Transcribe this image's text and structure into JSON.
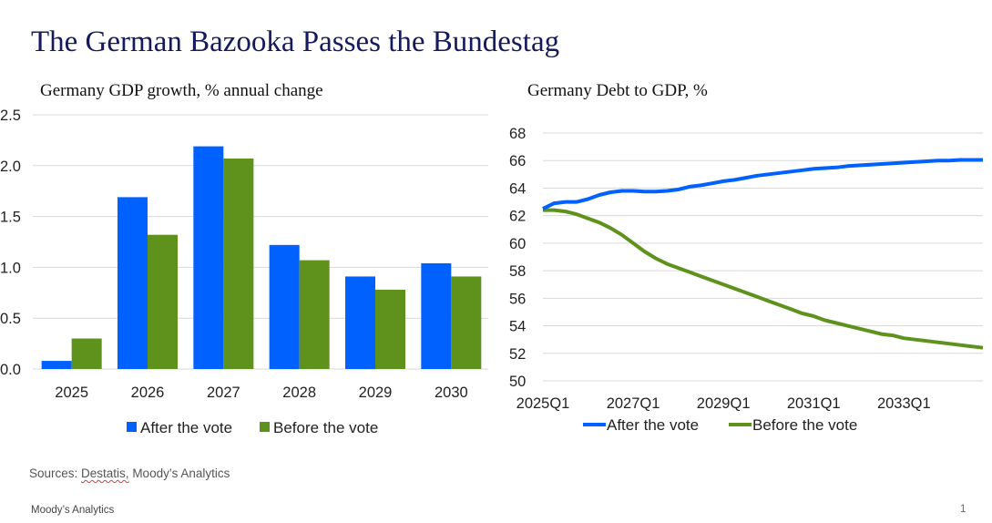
{
  "page": {
    "title": "The German Bazooka Passes the Bundestag",
    "sources_prefix": "Sources: ",
    "sources_link": "Destatis,",
    "sources_rest": " Moody’s Analytics",
    "footer": "Moody’s Analytics",
    "page_number": "1"
  },
  "colors": {
    "after": "#0061fe",
    "before": "#5e921d",
    "title": "#141a5c",
    "grid": "#d9d9d9"
  },
  "chart_data": [
    {
      "type": "bar",
      "title": "Germany GDP growth, % annual change",
      "xlabel": "",
      "ylabel": "",
      "categories": [
        "2025",
        "2026",
        "2027",
        "2028",
        "2029",
        "2030"
      ],
      "series": [
        {
          "name": "After the vote",
          "color": "#0061fe",
          "values": [
            0.08,
            1.69,
            2.19,
            1.22,
            0.91,
            1.04
          ]
        },
        {
          "name": "Before the vote",
          "color": "#5e921d",
          "values": [
            0.3,
            1.32,
            2.07,
            1.07,
            0.78,
            0.91
          ]
        }
      ],
      "ylim": [
        0,
        2.5
      ],
      "yticks": [
        "0.0",
        "0.5",
        "1.0",
        "1.5",
        "2.0",
        "2.5"
      ],
      "grid": true,
      "legend": "bottom-center"
    },
    {
      "type": "line",
      "title": "Germany Debt to GDP, %",
      "xlabel": "",
      "ylabel": "",
      "x_start": "2025Q1",
      "x_end": "2034Q4",
      "xticks": [
        "2025Q1",
        "2027Q1",
        "2029Q1",
        "2031Q1",
        "2033Q1"
      ],
      "xtick_quarter_index": [
        0,
        8,
        16,
        24,
        32
      ],
      "ylim": [
        50,
        68
      ],
      "yticks": [
        "50",
        "52",
        "54",
        "56",
        "58",
        "60",
        "62",
        "64",
        "66",
        "68"
      ],
      "grid": true,
      "legend": "bottom-center",
      "series": [
        {
          "name": "After the vote",
          "color": "#0061fe",
          "values": [
            62.5,
            62.9,
            63.0,
            63.0,
            63.2,
            63.5,
            63.7,
            63.8,
            63.8,
            63.75,
            63.75,
            63.8,
            63.9,
            64.1,
            64.2,
            64.35,
            64.5,
            64.6,
            64.75,
            64.9,
            65.0,
            65.1,
            65.2,
            65.3,
            65.4,
            65.45,
            65.5,
            65.6,
            65.65,
            65.7,
            65.75,
            65.8,
            65.85,
            65.9,
            65.95,
            66.0,
            66.0,
            66.05,
            66.05,
            66.05
          ]
        },
        {
          "name": "Before the vote",
          "color": "#5e921d",
          "values": [
            62.4,
            62.4,
            62.3,
            62.1,
            61.8,
            61.5,
            61.1,
            60.6,
            60.0,
            59.4,
            58.9,
            58.5,
            58.2,
            57.9,
            57.6,
            57.3,
            57.0,
            56.7,
            56.4,
            56.1,
            55.8,
            55.5,
            55.2,
            54.9,
            54.7,
            54.4,
            54.2,
            54.0,
            53.8,
            53.6,
            53.4,
            53.3,
            53.1,
            53.0,
            52.9,
            52.8,
            52.7,
            52.6,
            52.5,
            52.4
          ]
        }
      ]
    }
  ]
}
